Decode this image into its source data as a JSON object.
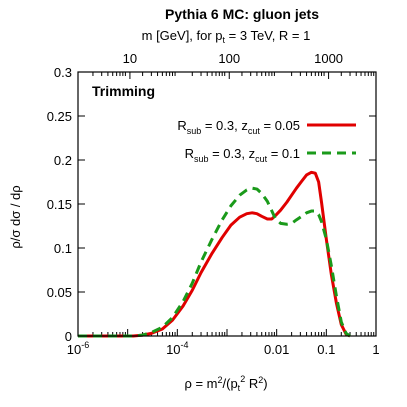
{
  "chart_data": {
    "type": "line",
    "title": "Pythia 6 MC: gluon jets",
    "top_axis": {
      "label_parts": [
        "m [GeV], for p",
        "t",
        " = 3 TeV, R = 1"
      ],
      "ticks": [
        {
          "label": "10",
          "rho": 1.11e-05
        },
        {
          "label": "100",
          "rho": 0.00111
        },
        {
          "label": "1000",
          "rho": 0.111
        }
      ]
    },
    "xlabel_parts": [
      "ρ = m",
      "2",
      "/(p",
      "t",
      "2",
      " R",
      "2",
      ")"
    ],
    "ylabel": "ρ/σ dσ / dρ",
    "xscale": "log",
    "xlim": [
      1e-06,
      1
    ],
    "ylim": [
      0,
      0.3
    ],
    "x_ticks": [
      {
        "base": "10",
        "exp": "-6",
        "value": 1e-06
      },
      {
        "base": "10",
        "exp": "-4",
        "value": 0.0001
      },
      {
        "base": "0.01",
        "exp": "",
        "value": 0.01
      },
      {
        "base": "0.1",
        "exp": "",
        "value": 0.1
      },
      {
        "base": "1",
        "exp": "",
        "value": 1
      }
    ],
    "y_ticks": [
      "0",
      "0.05",
      "0.1",
      "0.15",
      "0.2",
      "0.25",
      "0.3"
    ],
    "annotation": "Trimming",
    "series": [
      {
        "legend": {
          "base": "R",
          "sub1": "sub",
          "mid": " = 0.3, z",
          "sub2": "cut",
          "tail": " = 0.05"
        },
        "color": "#e00000",
        "dash": "solid",
        "x": [
          1e-06,
          2.5e-06,
          5e-06,
          8.5e-06,
          1.3e-05,
          2e-05,
          3e-05,
          5e-05,
          8e-05,
          0.00013,
          0.0002,
          0.0003,
          0.0005,
          0.0008,
          0.0012,
          0.0018,
          0.0025,
          0.0032,
          0.004,
          0.005,
          0.0065,
          0.008,
          0.0095,
          0.012,
          0.016,
          0.02,
          0.025,
          0.032,
          0.04,
          0.05,
          0.06,
          0.07,
          0.08,
          0.1,
          0.126,
          0.16,
          0.2,
          0.25,
          0.3
        ],
        "y": [
          0,
          0,
          0,
          0,
          0,
          0.001,
          0.003,
          0.008,
          0.018,
          0.034,
          0.052,
          0.072,
          0.094,
          0.112,
          0.126,
          0.135,
          0.139,
          0.14,
          0.139,
          0.136,
          0.133,
          0.133,
          0.137,
          0.143,
          0.152,
          0.16,
          0.168,
          0.176,
          0.183,
          0.186,
          0.185,
          0.175,
          0.152,
          0.11,
          0.07,
          0.037,
          0.013,
          0.002,
          0
        ]
      },
      {
        "legend": {
          "base": "R",
          "sub1": "sub",
          "mid": " = 0.3, z",
          "sub2": "cut",
          "tail": " = 0.1"
        },
        "color": "#1a9a1a",
        "dash": "dashed",
        "x": [
          1e-06,
          2.5e-06,
          5e-06,
          8.5e-06,
          1.3e-05,
          2e-05,
          3e-05,
          5e-05,
          8e-05,
          0.00013,
          0.0002,
          0.0003,
          0.0005,
          0.0008,
          0.0012,
          0.0018,
          0.0025,
          0.0032,
          0.004,
          0.005,
          0.0065,
          0.008,
          0.0095,
          0.012,
          0.016,
          0.02,
          0.025,
          0.032,
          0.04,
          0.05,
          0.06,
          0.07,
          0.08,
          0.1,
          0.126,
          0.16,
          0.2,
          0.25,
          0.3
        ],
        "y": [
          0,
          0,
          0,
          0,
          0,
          0.001,
          0.004,
          0.01,
          0.021,
          0.039,
          0.06,
          0.084,
          0.11,
          0.132,
          0.148,
          0.16,
          0.166,
          0.168,
          0.167,
          0.162,
          0.153,
          0.142,
          0.133,
          0.128,
          0.127,
          0.128,
          0.132,
          0.136,
          0.14,
          0.142,
          0.142,
          0.138,
          0.13,
          0.11,
          0.08,
          0.045,
          0.016,
          0.003,
          0
        ]
      }
    ]
  }
}
